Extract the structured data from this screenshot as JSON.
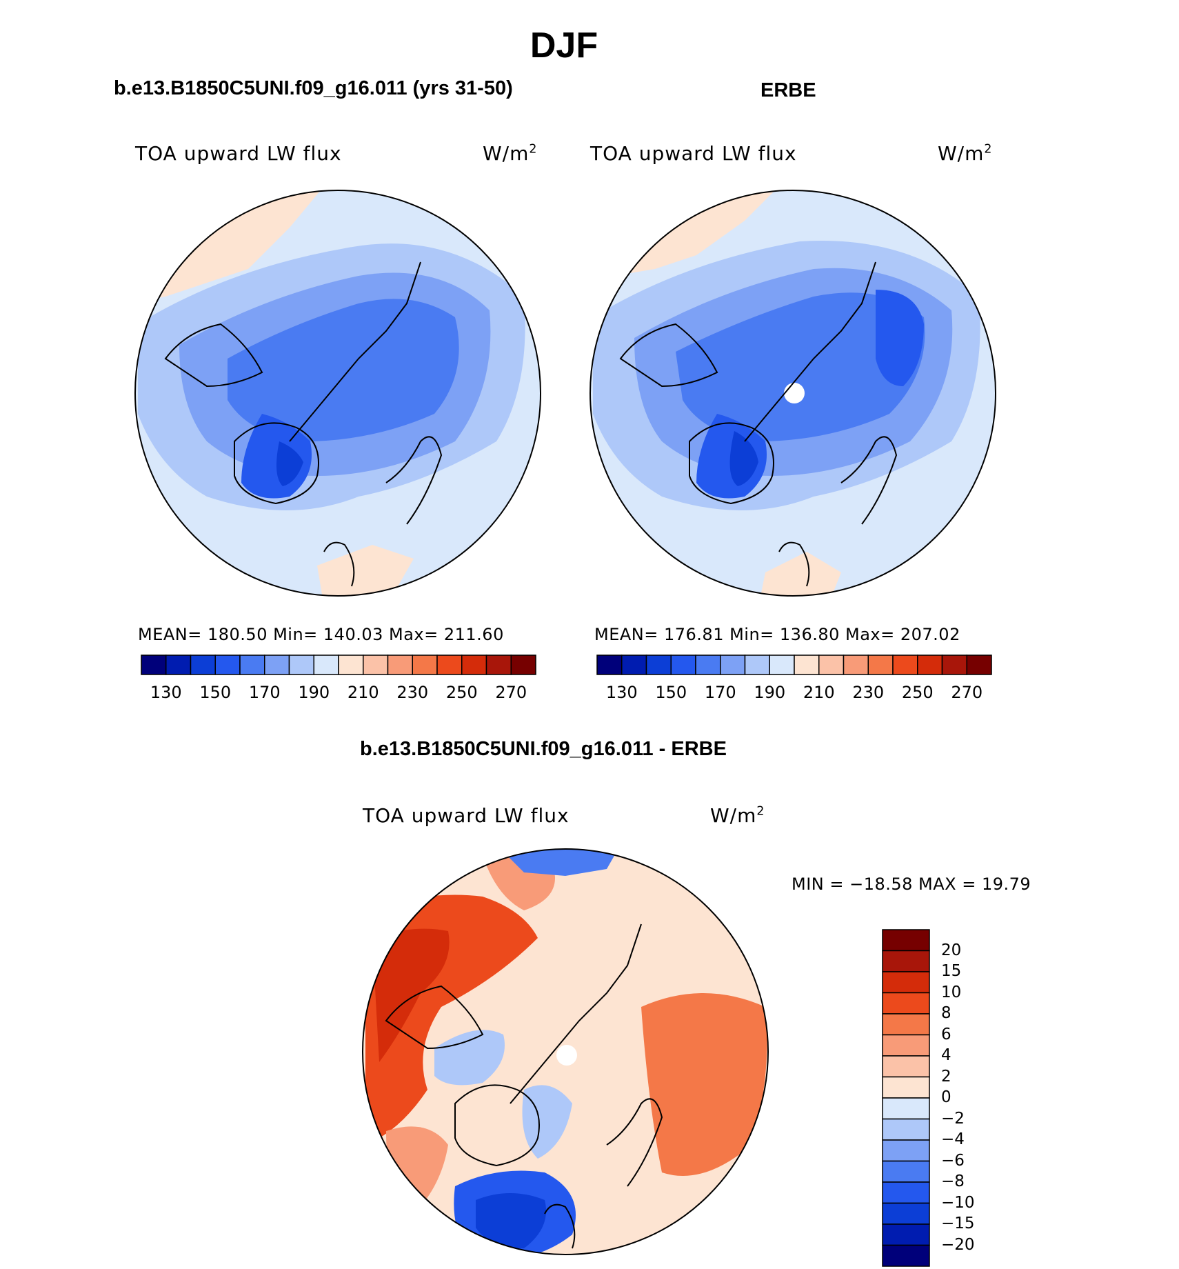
{
  "figure": {
    "title": "DJF"
  },
  "panels": {
    "left": {
      "case_title": "b.e13.B1850C5UNI.f09_g16.011 (yrs 31-50)",
      "variable": "TOA upward LW flux",
      "units_base": "W/m",
      "units_exp": "2",
      "stats": "MEAN= 180.50   Min= 140.03   Max= 211.60"
    },
    "right": {
      "case_title": "ERBE",
      "variable": "TOA upward LW flux",
      "units_base": "W/m",
      "units_exp": "2",
      "stats": "MEAN= 176.81   Min= 136.80   Max= 207.02"
    },
    "diff": {
      "case_title": "b.e13.B1850C5UNI.f09_g16.011 - ERBE",
      "variable": "TOA upward LW flux",
      "units_base": "W/m",
      "units_exp": "2",
      "stats": "MIN = −18.58 MAX =   19.79"
    }
  },
  "colorbars": {
    "absolute": {
      "colors": [
        "#00007a",
        "#001cb0",
        "#0c3ed6",
        "#2458ee",
        "#4a7bf2",
        "#7da1f5",
        "#aec8f9",
        "#d9e8fb",
        "#fde4d2",
        "#fbc2a8",
        "#f89b78",
        "#f47848",
        "#ec4a1c",
        "#d42c0a",
        "#a8160a",
        "#760000"
      ],
      "labels": [
        "130",
        "150",
        "170",
        "190",
        "210",
        "230",
        "250",
        "270"
      ]
    },
    "difference": {
      "colors": [
        "#760000",
        "#a8160a",
        "#d42c0a",
        "#ec4a1c",
        "#f47848",
        "#f89b78",
        "#fbc2a8",
        "#fde4d2",
        "#d9e8fb",
        "#aec8f9",
        "#7da1f5",
        "#4a7bf2",
        "#2458ee",
        "#0c3ed6",
        "#001cb0",
        "#00007a"
      ],
      "labels": [
        "20",
        "15",
        "10",
        "8",
        "6",
        "4",
        "2",
        "0",
        "−2",
        "−4",
        "−6",
        "−8",
        "−10",
        "−15",
        "−20"
      ]
    }
  }
}
